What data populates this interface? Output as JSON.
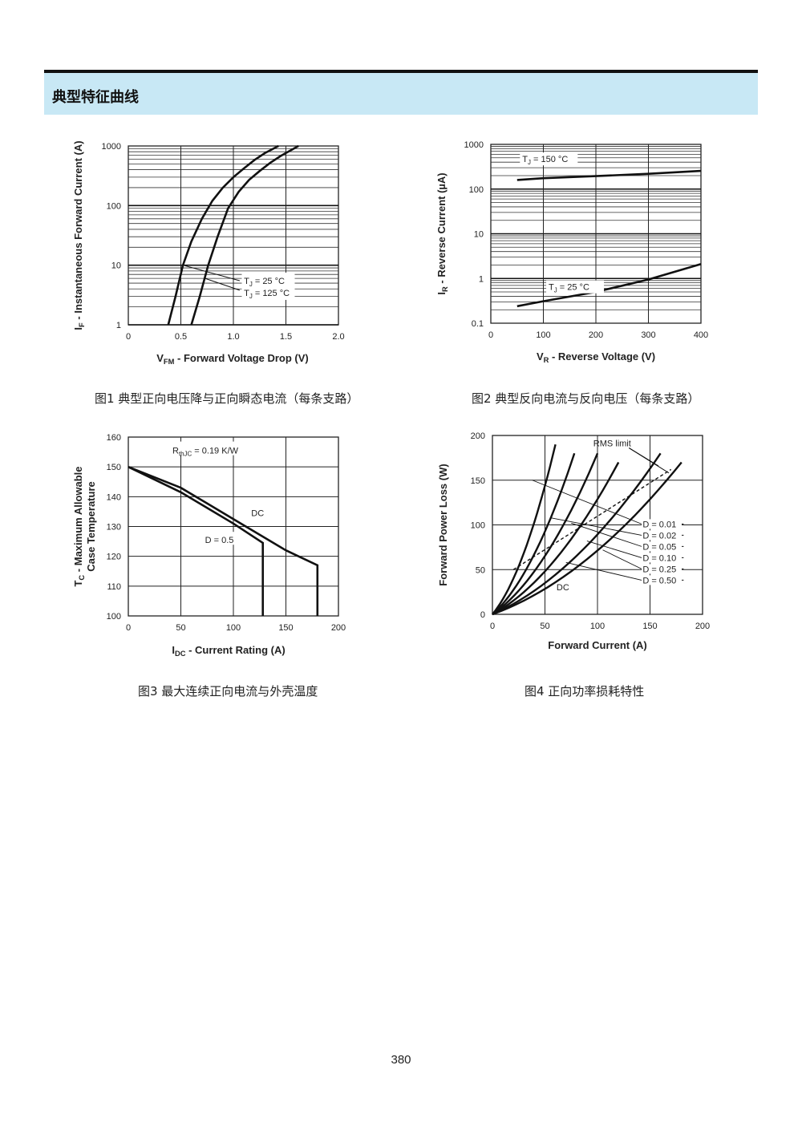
{
  "section_title": "典型特征曲线",
  "page_number": "380",
  "charts": [
    {
      "caption": "图1 典型正向电压降与正向瞬态电流（每条支路）"
    },
    {
      "caption": "图2 典型反向电流与反向电压（每条支路）"
    },
    {
      "caption": "图3 最大连续正向电流与外壳温度"
    },
    {
      "caption": "图4 正向功率损耗特性"
    }
  ],
  "chart_data": [
    {
      "type": "line",
      "xlabel_main": "V",
      "xlabel_sub": "FM",
      "xlabel_rest": " - Forward Voltage Drop (V)",
      "ylabel_main": "I",
      "ylabel_sub": "F",
      "ylabel_rest": " - Instantaneous Forward Current (A)",
      "xlim": [
        0,
        2.0
      ],
      "ylim": [
        1,
        1000
      ],
      "yscale": "log",
      "grid": true,
      "x_ticks": [
        "0",
        "0.5",
        "1.0",
        "1.5",
        "2.0"
      ],
      "y_ticks": [
        "1",
        "10",
        "100",
        "1000"
      ],
      "series": [
        {
          "name_main": "T",
          "name_sub": "J",
          "name_rest": " = 25 °C",
          "x": [
            0.38,
            0.45,
            0.52,
            0.6,
            0.7,
            0.8,
            0.9,
            1.0,
            1.1,
            1.2,
            1.3,
            1.43
          ],
          "y": [
            1,
            3,
            10,
            25,
            60,
            120,
            200,
            300,
            420,
            580,
            760,
            1000
          ]
        },
        {
          "name_main": "T",
          "name_sub": "J",
          "name_rest": " = 125 °C",
          "x": [
            0.6,
            0.68,
            0.76,
            0.85,
            0.95,
            1.05,
            1.15,
            1.25,
            1.35,
            1.45,
            1.62
          ],
          "y": [
            1,
            3,
            10,
            30,
            90,
            170,
            270,
            380,
            520,
            680,
            1000
          ]
        }
      ]
    },
    {
      "type": "line",
      "xlabel_main": "V",
      "xlabel_sub": "R",
      "xlabel_rest": " - Reverse Voltage (V)",
      "ylabel_main": "I",
      "ylabel_sub": "R",
      "ylabel_rest": " - Reverse Current (µA)",
      "xlim": [
        0,
        400
      ],
      "ylim": [
        0.1,
        1000
      ],
      "yscale": "log",
      "grid": true,
      "x_ticks": [
        "0",
        "100",
        "200",
        "300",
        "400"
      ],
      "y_ticks": [
        "0.1",
        "1",
        "10",
        "100",
        "1000"
      ],
      "series": [
        {
          "name_main": "T",
          "name_sub": "J",
          "name_rest": " = 150 °C",
          "x": [
            50,
            100,
            200,
            300,
            400
          ],
          "y": [
            160,
            175,
            195,
            220,
            255
          ]
        },
        {
          "name_main": "T",
          "name_sub": "J",
          "name_rest": " = 25 °C",
          "x": [
            50,
            100,
            200,
            300,
            400
          ],
          "y": [
            0.24,
            0.31,
            0.5,
            0.95,
            2.1
          ]
        }
      ]
    },
    {
      "type": "line",
      "xlabel_main": "I",
      "xlabel_sub": "DC",
      "xlabel_rest": " - Current Rating (A)",
      "ylabel_main": "T",
      "ylabel_sub": "C",
      "ylabel_rest": " - Maximum Allowable",
      "ylabel_line2": "Case Temperature",
      "xlim": [
        0,
        200
      ],
      "ylim": [
        100,
        160
      ],
      "grid": true,
      "x_ticks": [
        "0",
        "50",
        "100",
        "150",
        "200"
      ],
      "y_ticks": [
        "100",
        "110",
        "120",
        "130",
        "140",
        "150",
        "160"
      ],
      "annotation_main": "R",
      "annotation_sub": "thJC",
      "annotation_rest": " = 0.19 K/W",
      "series": [
        {
          "name": "DC",
          "x": [
            0,
            50,
            100,
            150,
            180,
            180
          ],
          "y": [
            150,
            143,
            132.5,
            122,
            117,
            100
          ]
        },
        {
          "name": "D = 0.5",
          "x": [
            0,
            50,
            100,
            128,
            128
          ],
          "y": [
            150,
            141.5,
            131,
            124.5,
            100
          ]
        }
      ]
    },
    {
      "type": "line",
      "xlabel": "Forward Current (A)",
      "ylabel": "Forward Power Loss (W)",
      "xlim": [
        0,
        200
      ],
      "ylim": [
        0,
        200
      ],
      "grid": true,
      "x_ticks": [
        "0",
        "50",
        "100",
        "150",
        "200"
      ],
      "y_ticks": [
        "0",
        "50",
        "100",
        "150",
        "200"
      ],
      "rms_label": "RMS limit",
      "series": [
        {
          "name": "D = 0.01",
          "x": [
            0,
            20,
            40,
            60
          ],
          "y": [
            0,
            50,
            120,
            190
          ]
        },
        {
          "name": "D = 0.02",
          "x": [
            0,
            25,
            50,
            78
          ],
          "y": [
            0,
            45,
            105,
            180
          ]
        },
        {
          "name": "D = 0.05",
          "x": [
            0,
            30,
            65,
            100
          ],
          "y": [
            0,
            40,
            100,
            180
          ]
        },
        {
          "name": "D = 0.10",
          "x": [
            0,
            40,
            80,
            120
          ],
          "y": [
            0,
            42,
            100,
            170
          ]
        },
        {
          "name": "D = 0.25",
          "x": [
            0,
            60,
            110,
            160
          ],
          "y": [
            0,
            45,
            105,
            180
          ]
        },
        {
          "name": "D = 0.50",
          "x": [
            0,
            60,
            120,
            180
          ],
          "y": [
            0,
            35,
            95,
            170
          ]
        }
      ],
      "dc_label": "DC",
      "rms_limit": {
        "x": [
          20,
          170
        ],
        "y": [
          50,
          162
        ]
      }
    }
  ]
}
